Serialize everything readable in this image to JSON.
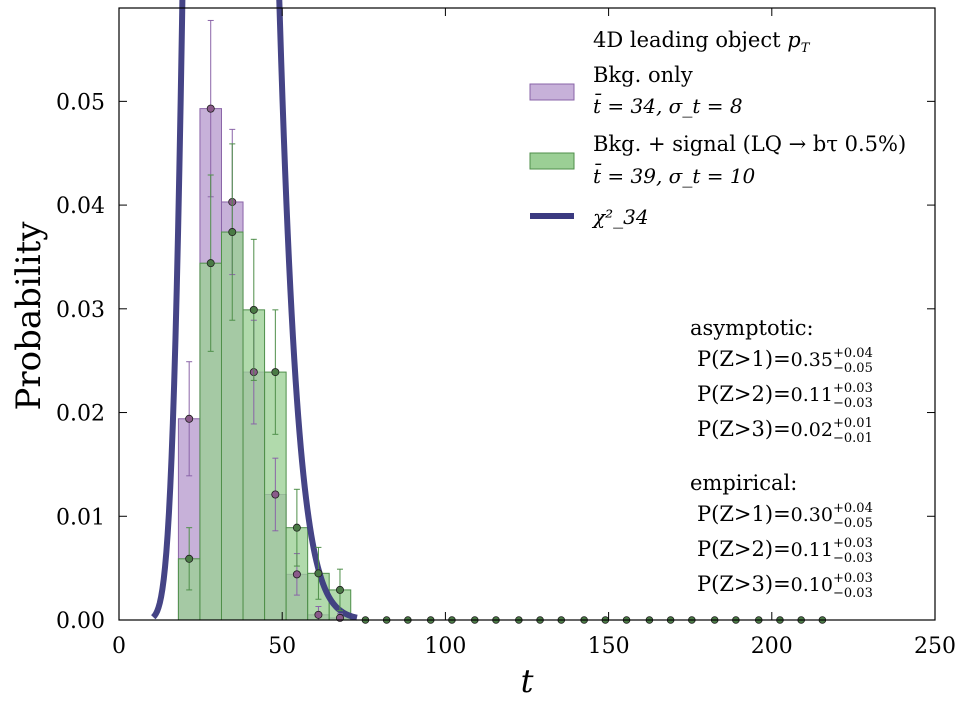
{
  "chart_data": {
    "type": "bar",
    "xlabel": "t",
    "ylabel": "Probability",
    "xlim": [
      0,
      250
    ],
    "ylim": [
      0,
      0.059
    ],
    "xticks": [
      0,
      50,
      100,
      150,
      200,
      250
    ],
    "yticks": [
      0.0,
      0.01,
      0.02,
      0.03,
      0.04,
      0.05
    ],
    "xtick_labels": [
      "0",
      "50",
      "100",
      "150",
      "200",
      "250"
    ],
    "ytick_labels": [
      "0.00",
      "0.01",
      "0.02",
      "0.03",
      "0.04",
      "0.05"
    ],
    "grid": false,
    "legend_position": "top-right",
    "legend_title": "4D leading object p_T",
    "bin_width": 6.6,
    "series": [
      {
        "name": "Bkg. only",
        "sublabel": "t̄ = 34, σ_t = 8",
        "color": "#c7b1d9",
        "edge": "#8a64a8",
        "marker": "#8a5a8a",
        "bin_left": [
          18.2,
          24.8,
          31.4,
          38.0,
          44.6,
          51.2,
          57.8,
          64.4
        ],
        "values": [
          0.0194,
          0.0493,
          0.0403,
          0.0239,
          0.0121,
          0.0044,
          0.0005,
          0.0002
        ],
        "errors": [
          0.0055,
          0.0085,
          0.007,
          0.005,
          0.0035,
          0.002,
          0.0008,
          0.0004
        ]
      },
      {
        "name": "Bkg. + signal (LQ → bτ 0.5%)",
        "sublabel": "t̄ = 39, σ_t = 10",
        "color": "#9bcf95",
        "edge": "#4f8f4a",
        "marker": "#4a7a45",
        "bin_left": [
          18.2,
          24.8,
          31.4,
          38.0,
          44.6,
          51.2,
          57.8,
          64.4
        ],
        "values": [
          0.0059,
          0.0344,
          0.0374,
          0.0299,
          0.0239,
          0.0089,
          0.0045,
          0.0029
        ],
        "errors": [
          0.003,
          0.0085,
          0.0085,
          0.0068,
          0.006,
          0.0037,
          0.0025,
          0.002
        ]
      }
    ],
    "empty_points_x": [
      75.5,
      82,
      88.5,
      95.5,
      102,
      109,
      115.5,
      122.5,
      129,
      135.5,
      142.5,
      149,
      155.5,
      162.5,
      169,
      175.5,
      182.5,
      189,
      196,
      202.5,
      209,
      215.5
    ],
    "curve": {
      "name": "χ²_34",
      "dof": 34,
      "color": "#3b3a80",
      "x_start": 10.5,
      "x_end": 73
    },
    "annotations": {
      "asymptotic_title": "asymptotic:",
      "asymptotic": [
        {
          "label": "P(Z>1)=",
          "value": "0.35",
          "plus": "+0.04",
          "minus": "−0.05"
        },
        {
          "label": "P(Z>2)=",
          "value": "0.11",
          "plus": "+0.03",
          "minus": "−0.03"
        },
        {
          "label": "P(Z>3)=",
          "value": "0.02",
          "plus": "+0.01",
          "minus": "−0.01"
        }
      ],
      "empirical_title": "empirical:",
      "empirical": [
        {
          "label": "P(Z>1)=",
          "value": "0.30",
          "plus": "+0.04",
          "minus": "−0.05"
        },
        {
          "label": "P(Z>2)=",
          "value": "0.11",
          "plus": "+0.03",
          "minus": "−0.03"
        },
        {
          "label": "P(Z>3)=",
          "value": "0.10",
          "plus": "+0.03",
          "minus": "−0.03"
        }
      ]
    }
  }
}
